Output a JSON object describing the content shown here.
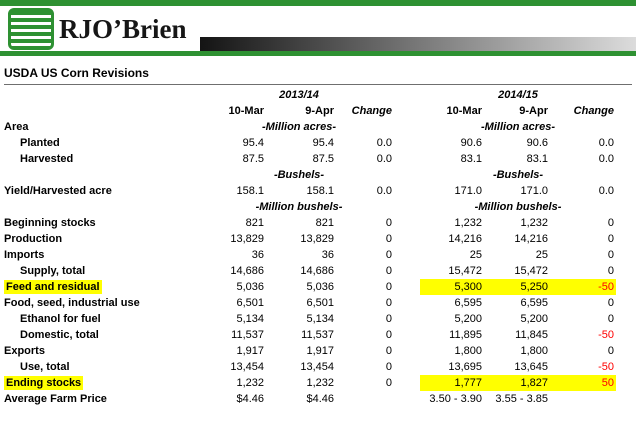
{
  "colors": {
    "brand_green": "#2e9132",
    "highlight": "#ffff00",
    "negative": "#ff0000",
    "gradient_dark": "#141414",
    "gradient_light": "#dcdcdc"
  },
  "brand": {
    "name": "RJO’Brien",
    "logo_icon": "striped-green-square-icon"
  },
  "title": "USDA US Corn Revisions",
  "table": {
    "groups": [
      "2013/14",
      "2014/15"
    ],
    "col_headers": [
      "10-Mar",
      "9-Apr",
      "Change",
      "10-Mar",
      "9-Apr",
      "Change"
    ],
    "rows": [
      {
        "label": "Area",
        "units": [
          "-Million acres-",
          "-Million acres-"
        ]
      },
      {
        "label": "Planted",
        "indent": 1,
        "cells": [
          "95.4",
          "95.4",
          "0.0",
          "90.6",
          "90.6",
          "0.0"
        ]
      },
      {
        "label": "Harvested",
        "indent": 1,
        "cells": [
          "87.5",
          "87.5",
          "0.0",
          "83.1",
          "83.1",
          "0.0"
        ]
      },
      {
        "label": "",
        "units": [
          "-Bushels-",
          "-Bushels-"
        ]
      },
      {
        "label": "Yield/Harvested acre",
        "cells": [
          "158.1",
          "158.1",
          "0.0",
          "171.0",
          "171.0",
          "0.0"
        ]
      },
      {
        "label": "",
        "units": [
          "-Million bushels-",
          "-Million bushels-"
        ]
      },
      {
        "label": "Beginning stocks",
        "cells": [
          "821",
          "821",
          "0",
          "1,232",
          "1,232",
          "0"
        ]
      },
      {
        "label": "Production",
        "cells": [
          "13,829",
          "13,829",
          "0",
          "14,216",
          "14,216",
          "0"
        ]
      },
      {
        "label": "Imports",
        "cells": [
          "36",
          "36",
          "0",
          "25",
          "25",
          "0"
        ]
      },
      {
        "label": "Supply, total",
        "indent": 1,
        "cells": [
          "14,686",
          "14,686",
          "0",
          "15,472",
          "15,472",
          "0"
        ]
      },
      {
        "label": "Feed and residual",
        "hl_label": true,
        "cells": [
          "5,036",
          "5,036",
          "0",
          "5,300",
          "5,250",
          "-50"
        ],
        "hl": [
          3,
          4,
          5
        ],
        "red": [
          5
        ]
      },
      {
        "label": "Food, seed, industrial use",
        "cells": [
          "6,501",
          "6,501",
          "0",
          "6,595",
          "6,595",
          "0"
        ]
      },
      {
        "label": "Ethanol for fuel",
        "indent": 1,
        "cells": [
          "5,134",
          "5,134",
          "0",
          "5,200",
          "5,200",
          "0"
        ]
      },
      {
        "label": "Domestic, total",
        "indent": 1,
        "cells": [
          "11,537",
          "11,537",
          "0",
          "11,895",
          "11,845",
          "-50"
        ],
        "red": [
          5
        ]
      },
      {
        "label": "Exports",
        "cells": [
          "1,917",
          "1,917",
          "0",
          "1,800",
          "1,800",
          "0"
        ]
      },
      {
        "label": "Use, total",
        "indent": 1,
        "cells": [
          "13,454",
          "13,454",
          "0",
          "13,695",
          "13,645",
          "-50"
        ],
        "red": [
          5
        ]
      },
      {
        "label": "Ending stocks",
        "hl_label": true,
        "cells": [
          "1,232",
          "1,232",
          "0",
          "1,777",
          "1,827",
          "50"
        ],
        "hl": [
          3,
          4,
          5
        ],
        "red": [
          5
        ]
      },
      {
        "label": "Average Farm Price",
        "cells": [
          "$4.46",
          "$4.46",
          "",
          "3.50 - 3.90",
          "3.55 - 3.85",
          ""
        ]
      }
    ]
  }
}
